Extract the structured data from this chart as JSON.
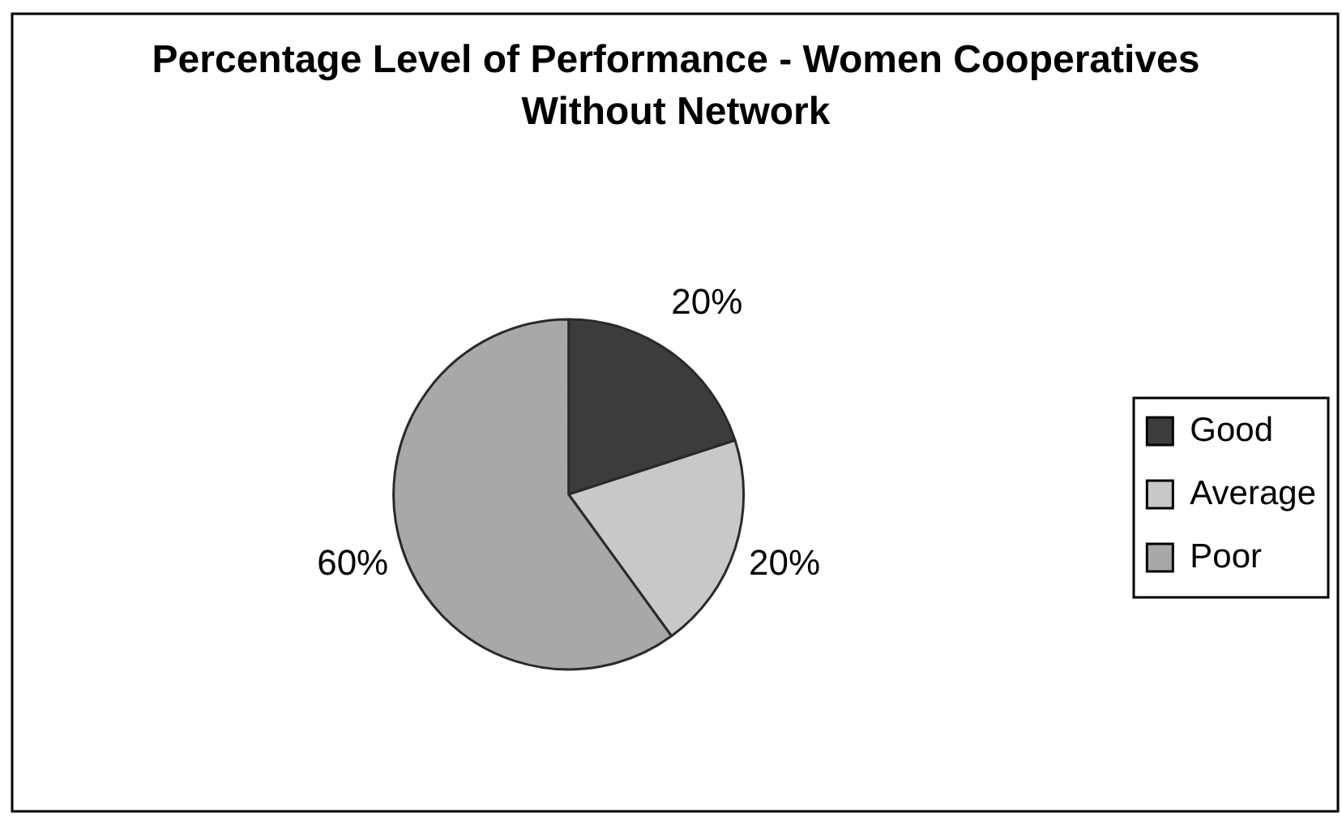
{
  "chart_data": {
    "type": "pie",
    "title": "Percentage Level of Performance - Women Cooperatives\nWithout Network",
    "categories": [
      "Good",
      "Average",
      "Poor"
    ],
    "values": [
      20,
      20,
      60
    ],
    "colors": [
      "#3c3c3c",
      "#c8c8c8",
      "#a8a8a8"
    ],
    "value_labels": [
      "20%",
      "20%",
      "60%"
    ],
    "legend": "right"
  }
}
